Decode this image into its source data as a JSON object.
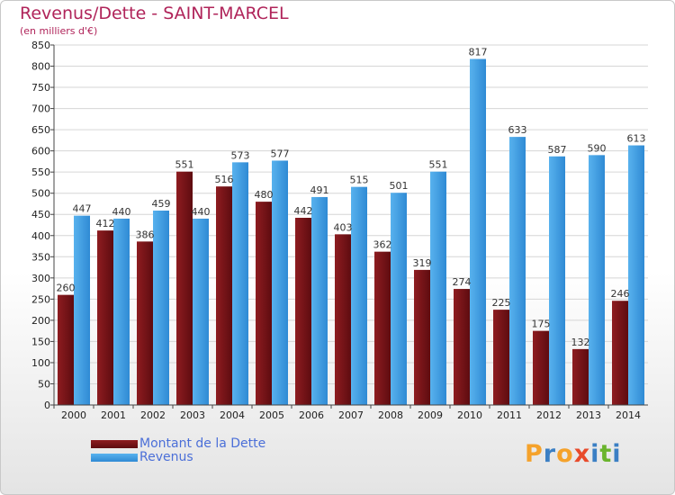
{
  "title": "Revenus/Dette - SAINT-MARCEL",
  "subtitle": "(en milliers d'€)",
  "logo": [
    "P",
    "r",
    "o",
    "x",
    "i",
    "t",
    "i"
  ],
  "logo_colors": [
    "#f5a22b",
    "#3b7fc4",
    "#f5a22b",
    "#e84a2a",
    "#3b7fc4",
    "#6ab42d",
    "#3b7fc4"
  ],
  "colors": {
    "dette": "#7a1418",
    "revenus": "#3f9fe4",
    "title": "#b0245a",
    "legend_text": "#4b6fd8"
  },
  "chart_data": {
    "type": "bar",
    "title": "Revenus/Dette - SAINT-MARCEL",
    "ylabel": "(en milliers d'€)",
    "xlabel": "",
    "ylim": [
      0,
      850
    ],
    "yticks": [
      0,
      50,
      100,
      150,
      200,
      250,
      300,
      350,
      400,
      450,
      500,
      550,
      600,
      650,
      700,
      750,
      800,
      850
    ],
    "grid": true,
    "legend_position": "bottom-left",
    "categories": [
      "2000",
      "2001",
      "2002",
      "2003",
      "2004",
      "2005",
      "2006",
      "2007",
      "2008",
      "2009",
      "2010",
      "2011",
      "2012",
      "2013",
      "2014"
    ],
    "series": [
      {
        "name": "Montant de la Dette",
        "values": [
          260,
          412,
          386,
          551,
          516,
          480,
          442,
          403,
          362,
          319,
          274,
          225,
          175,
          132,
          246
        ]
      },
      {
        "name": "Revenus",
        "values": [
          447,
          440,
          459,
          440,
          573,
          577,
          491,
          515,
          501,
          551,
          817,
          633,
          587,
          590,
          613
        ]
      }
    ]
  }
}
